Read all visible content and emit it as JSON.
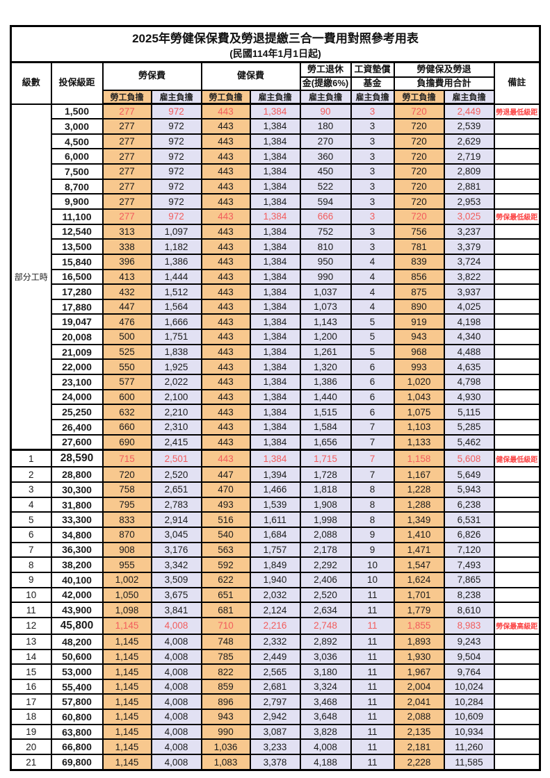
{
  "title": "2025年勞健保保費及勞退提繳三合一費用對照參考用表",
  "subtitle": "(民國114年1月1日起)",
  "colors": {
    "employee_column_bg": "#F8C88E",
    "employer_column_bg": "#E2E1F3",
    "highlight_value_red": "#F25C5C",
    "remark_red": "#FB4343",
    "border_black": "#000000"
  },
  "table": {
    "headers": {
      "level": "級數",
      "bracket": "投保級距",
      "labor_title": "勞保費",
      "health_title": "健保費",
      "pension_line1": "勞工退休",
      "pension_line2": "金(提繳6%)",
      "wage_fund_line1": "工資墊償",
      "wage_fund_line2": "基金",
      "total_line1": "勞健保及勞退",
      "total_line2": "負擔費用合計",
      "remark": "備註",
      "employee": "勞工負擔",
      "employer": "雇主負擔"
    },
    "group": {
      "label": "部分工時",
      "span": 23
    },
    "value_column_keys": [
      "labor-employee",
      "labor-employer",
      "health-employee",
      "health-employer",
      "pension-employer",
      "wagefund-employer",
      "total-employee",
      "total-employer"
    ],
    "value_column_tints": [
      "emp",
      "er",
      "emp",
      "er",
      "er",
      "er",
      "emp",
      "er"
    ],
    "rows": [
      {
        "level": "",
        "bracket": "1,500",
        "values": [
          "277",
          "972",
          "443",
          "1,384",
          "90",
          "3",
          "720",
          "2,449"
        ],
        "remark": "勞退最低級距",
        "red": true,
        "sep": false,
        "big": false
      },
      {
        "level": "",
        "bracket": "3,000",
        "values": [
          "277",
          "972",
          "443",
          "1,384",
          "180",
          "3",
          "720",
          "2,539"
        ],
        "remark": "",
        "red": false,
        "sep": false,
        "big": false
      },
      {
        "level": "",
        "bracket": "4,500",
        "values": [
          "277",
          "972",
          "443",
          "1,384",
          "270",
          "3",
          "720",
          "2,629"
        ],
        "remark": "",
        "red": false,
        "sep": false,
        "big": false
      },
      {
        "level": "",
        "bracket": "6,000",
        "values": [
          "277",
          "972",
          "443",
          "1,384",
          "360",
          "3",
          "720",
          "2,719"
        ],
        "remark": "",
        "red": false,
        "sep": false,
        "big": false
      },
      {
        "level": "",
        "bracket": "7,500",
        "values": [
          "277",
          "972",
          "443",
          "1,384",
          "450",
          "3",
          "720",
          "2,809"
        ],
        "remark": "",
        "red": false,
        "sep": false,
        "big": false
      },
      {
        "level": "",
        "bracket": "8,700",
        "values": [
          "277",
          "972",
          "443",
          "1,384",
          "522",
          "3",
          "720",
          "2,881"
        ],
        "remark": "",
        "red": false,
        "sep": false,
        "big": false
      },
      {
        "level": "",
        "bracket": "9,900",
        "values": [
          "277",
          "972",
          "443",
          "1,384",
          "594",
          "3",
          "720",
          "2,953"
        ],
        "remark": "",
        "red": false,
        "sep": false,
        "big": false
      },
      {
        "level": "",
        "bracket": "11,100",
        "values": [
          "277",
          "972",
          "443",
          "1,384",
          "666",
          "3",
          "720",
          "3,025"
        ],
        "remark": "勞保最低級距",
        "red": true,
        "sep": false,
        "big": false
      },
      {
        "level": "",
        "bracket": "12,540",
        "values": [
          "313",
          "1,097",
          "443",
          "1,384",
          "752",
          "3",
          "756",
          "3,237"
        ],
        "remark": "",
        "red": false,
        "sep": false,
        "big": false
      },
      {
        "level": "",
        "bracket": "13,500",
        "values": [
          "338",
          "1,182",
          "443",
          "1,384",
          "810",
          "3",
          "781",
          "3,379"
        ],
        "remark": "",
        "red": false,
        "sep": false,
        "big": false
      },
      {
        "level": "",
        "bracket": "15,840",
        "values": [
          "396",
          "1,386",
          "443",
          "1,384",
          "950",
          "4",
          "839",
          "3,724"
        ],
        "remark": "",
        "red": false,
        "sep": false,
        "big": false
      },
      {
        "level": "",
        "bracket": "16,500",
        "values": [
          "413",
          "1,444",
          "443",
          "1,384",
          "990",
          "4",
          "856",
          "3,822"
        ],
        "remark": "",
        "red": false,
        "sep": false,
        "big": false
      },
      {
        "level": "",
        "bracket": "17,280",
        "values": [
          "432",
          "1,512",
          "443",
          "1,384",
          "1,037",
          "4",
          "875",
          "3,937"
        ],
        "remark": "",
        "red": false,
        "sep": false,
        "big": false
      },
      {
        "level": "",
        "bracket": "17,880",
        "values": [
          "447",
          "1,564",
          "443",
          "1,384",
          "1,073",
          "4",
          "890",
          "4,025"
        ],
        "remark": "",
        "red": false,
        "sep": false,
        "big": false
      },
      {
        "level": "",
        "bracket": "19,047",
        "values": [
          "476",
          "1,666",
          "443",
          "1,384",
          "1,143",
          "5",
          "919",
          "4,198"
        ],
        "remark": "",
        "red": false,
        "sep": false,
        "big": false
      },
      {
        "level": "",
        "bracket": "20,008",
        "values": [
          "500",
          "1,751",
          "443",
          "1,384",
          "1,200",
          "5",
          "943",
          "4,340"
        ],
        "remark": "",
        "red": false,
        "sep": false,
        "big": false
      },
      {
        "level": "",
        "bracket": "21,009",
        "values": [
          "525",
          "1,838",
          "443",
          "1,384",
          "1,261",
          "5",
          "968",
          "4,488"
        ],
        "remark": "",
        "red": false,
        "sep": false,
        "big": false
      },
      {
        "level": "",
        "bracket": "22,000",
        "values": [
          "550",
          "1,925",
          "443",
          "1,384",
          "1,320",
          "6",
          "993",
          "4,635"
        ],
        "remark": "",
        "red": false,
        "sep": false,
        "big": false
      },
      {
        "level": "",
        "bracket": "23,100",
        "values": [
          "577",
          "2,022",
          "443",
          "1,384",
          "1,386",
          "6",
          "1,020",
          "4,798"
        ],
        "remark": "",
        "red": false,
        "sep": false,
        "big": false
      },
      {
        "level": "",
        "bracket": "24,000",
        "values": [
          "600",
          "2,100",
          "443",
          "1,384",
          "1,440",
          "6",
          "1,043",
          "4,930"
        ],
        "remark": "",
        "red": false,
        "sep": false,
        "big": false
      },
      {
        "level": "",
        "bracket": "25,250",
        "values": [
          "632",
          "2,210",
          "443",
          "1,384",
          "1,515",
          "6",
          "1,075",
          "5,115"
        ],
        "remark": "",
        "red": false,
        "sep": false,
        "big": false
      },
      {
        "level": "",
        "bracket": "26,400",
        "values": [
          "660",
          "2,310",
          "443",
          "1,384",
          "1,584",
          "7",
          "1,103",
          "5,285"
        ],
        "remark": "",
        "red": false,
        "sep": false,
        "big": false
      },
      {
        "level": "",
        "bracket": "27,600",
        "values": [
          "690",
          "2,415",
          "443",
          "1,384",
          "1,656",
          "7",
          "1,133",
          "5,462"
        ],
        "remark": "",
        "red": false,
        "sep": false,
        "big": false
      },
      {
        "level": "1",
        "bracket": "28,590",
        "values": [
          "715",
          "2,501",
          "443",
          "1,384",
          "1,715",
          "7",
          "1,158",
          "5,608"
        ],
        "remark": "健保最低級距",
        "red": true,
        "sep": true,
        "big": true
      },
      {
        "level": "2",
        "bracket": "28,800",
        "values": [
          "720",
          "2,520",
          "447",
          "1,394",
          "1,728",
          "7",
          "1,167",
          "5,649"
        ],
        "remark": "",
        "red": false,
        "sep": false,
        "big": false
      },
      {
        "level": "3",
        "bracket": "30,300",
        "values": [
          "758",
          "2,651",
          "470",
          "1,466",
          "1,818",
          "8",
          "1,228",
          "5,943"
        ],
        "remark": "",
        "red": false,
        "sep": false,
        "big": false
      },
      {
        "level": "4",
        "bracket": "31,800",
        "values": [
          "795",
          "2,783",
          "493",
          "1,539",
          "1,908",
          "8",
          "1,288",
          "6,238"
        ],
        "remark": "",
        "red": false,
        "sep": false,
        "big": false
      },
      {
        "level": "5",
        "bracket": "33,300",
        "values": [
          "833",
          "2,914",
          "516",
          "1,611",
          "1,998",
          "8",
          "1,349",
          "6,531"
        ],
        "remark": "",
        "red": false,
        "sep": false,
        "big": false
      },
      {
        "level": "6",
        "bracket": "34,800",
        "values": [
          "870",
          "3,045",
          "540",
          "1,684",
          "2,088",
          "9",
          "1,410",
          "6,826"
        ],
        "remark": "",
        "red": false,
        "sep": false,
        "big": false
      },
      {
        "level": "7",
        "bracket": "36,300",
        "values": [
          "908",
          "3,176",
          "563",
          "1,757",
          "2,178",
          "9",
          "1,471",
          "7,120"
        ],
        "remark": "",
        "red": false,
        "sep": false,
        "big": false
      },
      {
        "level": "8",
        "bracket": "38,200",
        "values": [
          "955",
          "3,342",
          "592",
          "1,849",
          "2,292",
          "10",
          "1,547",
          "7,493"
        ],
        "remark": "",
        "red": false,
        "sep": false,
        "big": false
      },
      {
        "level": "9",
        "bracket": "40,100",
        "values": [
          "1,002",
          "3,509",
          "622",
          "1,940",
          "2,406",
          "10",
          "1,624",
          "7,865"
        ],
        "remark": "",
        "red": false,
        "sep": false,
        "big": false
      },
      {
        "level": "10",
        "bracket": "42,000",
        "values": [
          "1,050",
          "3,675",
          "651",
          "2,032",
          "2,520",
          "11",
          "1,701",
          "8,238"
        ],
        "remark": "",
        "red": false,
        "sep": false,
        "big": false
      },
      {
        "level": "11",
        "bracket": "43,900",
        "values": [
          "1,098",
          "3,841",
          "681",
          "2,124",
          "2,634",
          "11",
          "1,779",
          "8,610"
        ],
        "remark": "",
        "red": false,
        "sep": false,
        "big": false
      },
      {
        "level": "12",
        "bracket": "45,800",
        "values": [
          "1,145",
          "4,008",
          "710",
          "2,216",
          "2,748",
          "11",
          "1,855",
          "8,983"
        ],
        "remark": "勞保最高級距",
        "red": true,
        "sep": false,
        "big": true
      },
      {
        "level": "13",
        "bracket": "48,200",
        "values": [
          "1,145",
          "4,008",
          "748",
          "2,332",
          "2,892",
          "11",
          "1,893",
          "9,243"
        ],
        "remark": "",
        "red": false,
        "sep": false,
        "big": false
      },
      {
        "level": "14",
        "bracket": "50,600",
        "values": [
          "1,145",
          "4,008",
          "785",
          "2,449",
          "3,036",
          "11",
          "1,930",
          "9,504"
        ],
        "remark": "",
        "red": false,
        "sep": false,
        "big": false
      },
      {
        "level": "15",
        "bracket": "53,000",
        "values": [
          "1,145",
          "4,008",
          "822",
          "2,565",
          "3,180",
          "11",
          "1,967",
          "9,764"
        ],
        "remark": "",
        "red": false,
        "sep": false,
        "big": false
      },
      {
        "level": "16",
        "bracket": "55,400",
        "values": [
          "1,145",
          "4,008",
          "859",
          "2,681",
          "3,324",
          "11",
          "2,004",
          "10,024"
        ],
        "remark": "",
        "red": false,
        "sep": false,
        "big": false
      },
      {
        "level": "17",
        "bracket": "57,800",
        "values": [
          "1,145",
          "4,008",
          "896",
          "2,797",
          "3,468",
          "11",
          "2,041",
          "10,284"
        ],
        "remark": "",
        "red": false,
        "sep": false,
        "big": false
      },
      {
        "level": "18",
        "bracket": "60,800",
        "values": [
          "1,145",
          "4,008",
          "943",
          "2,942",
          "3,648",
          "11",
          "2,088",
          "10,609"
        ],
        "remark": "",
        "red": false,
        "sep": false,
        "big": false
      },
      {
        "level": "19",
        "bracket": "63,800",
        "values": [
          "1,145",
          "4,008",
          "990",
          "3,087",
          "3,828",
          "11",
          "2,135",
          "10,934"
        ],
        "remark": "",
        "red": false,
        "sep": false,
        "big": false
      },
      {
        "level": "20",
        "bracket": "66,800",
        "values": [
          "1,145",
          "4,008",
          "1,036",
          "3,233",
          "4,008",
          "11",
          "2,181",
          "11,260"
        ],
        "remark": "",
        "red": false,
        "sep": false,
        "big": false
      },
      {
        "level": "21",
        "bracket": "69,800",
        "values": [
          "1,145",
          "4,008",
          "1,083",
          "3,378",
          "4,188",
          "11",
          "2,228",
          "11,585"
        ],
        "remark": "",
        "red": false,
        "sep": false,
        "big": false
      }
    ]
  }
}
